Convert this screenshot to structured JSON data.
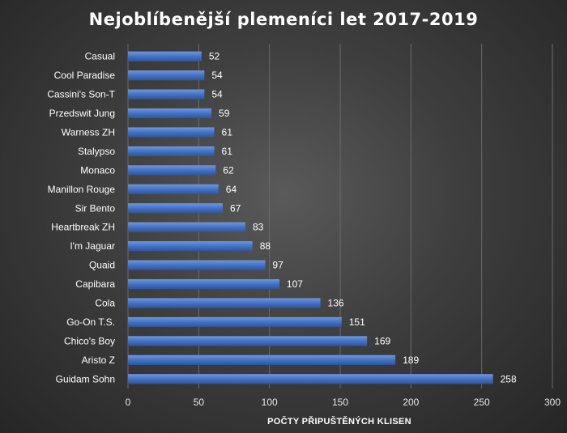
{
  "chart_data": {
    "type": "bar",
    "orientation": "horizontal",
    "title": "Nejoblíbenější plemeníci let 2017-2019",
    "xlabel": "POČTY PŘIPUŠTĚNÝCH KLISEN",
    "ylabel": "",
    "xlim": [
      0,
      300
    ],
    "xticks": [
      0,
      50,
      100,
      150,
      200,
      250,
      300
    ],
    "grid": true,
    "legend": "none",
    "bar_color": "#4472C4",
    "categories": [
      "Casual",
      "Cool Paradise",
      "Cassini's Son-T",
      "Przedswit Jung",
      "Warness ZH",
      "Stalypso",
      "Monaco",
      "Manillon Rouge",
      "Sir Bento",
      "Heartbreak ZH",
      "I'm Jaguar",
      "Quaid",
      "Capibara",
      "Cola",
      "Go-On T.S.",
      "Chico's Boy",
      "Aristo Z",
      "Guidam Sohn"
    ],
    "values": [
      52,
      54,
      54,
      59,
      61,
      61,
      62,
      64,
      67,
      83,
      88,
      97,
      107,
      136,
      151,
      169,
      189,
      258
    ]
  }
}
